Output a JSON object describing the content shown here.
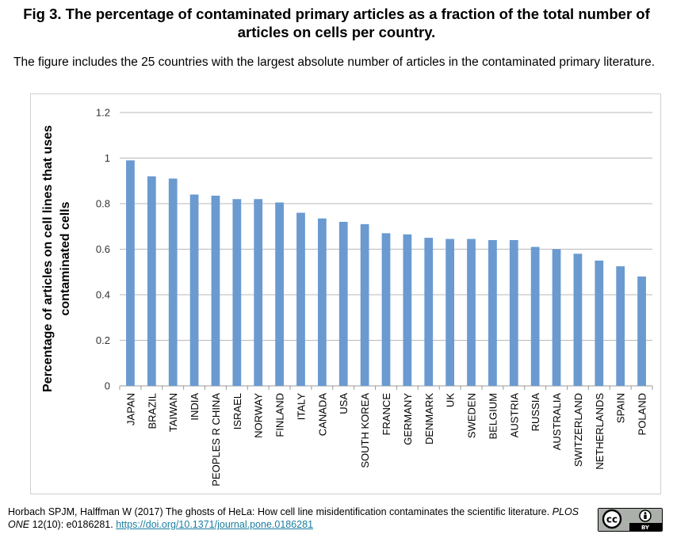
{
  "figure": {
    "title": "Fig 3. The percentage of contaminated primary articles as a fraction of the total number of articles on cells per country.",
    "caption": "The figure includes the 25 countries with the largest absolute number of articles in the contaminated primary literature."
  },
  "attribution": {
    "text_before": "Horbach SPJM, Halffman W (2017) The ghosts of HeLa: How cell line misidentification contaminates the scientific literature. ",
    "journal": "PLOS ONE",
    "text_after": " 12(10): e0186281. ",
    "doi_link": "https://doi.org/10.1371/journal.pone.0186281"
  },
  "license": {
    "cc_label": "cc",
    "by_label": "BY"
  },
  "chart_data": {
    "type": "bar",
    "title": "",
    "xlabel": "",
    "ylabel": "Percentage of articles on cell lines that uses contaminated cells",
    "ylabel_lines": [
      "Percentage of articles on cell lines that uses",
      "contaminated cells"
    ],
    "ylim": [
      0,
      1.2
    ],
    "yticks": [
      "0",
      "0.2",
      "0.4",
      "0.6",
      "0.8",
      "1",
      "1.2"
    ],
    "grid": true,
    "color": "#6a9ad0",
    "categories": [
      "JAPAN",
      "BRAZIL",
      "TAIWAN",
      "INDIA",
      "PEOPLES R CHINA",
      "ISRAEL",
      "NORWAY",
      "FINLAND",
      "ITALY",
      "CANADA",
      "USA",
      "SOUTH KOREA",
      "FRANCE",
      "GERMANY",
      "DENMARK",
      "UK",
      "SWEDEN",
      "BELGIUM",
      "AUSTRIA",
      "RUSSIA",
      "AUSTRALIA",
      "SWITZERLAND",
      "NETHERLANDS",
      "SPAIN",
      "POLAND"
    ],
    "values": [
      0.99,
      0.92,
      0.91,
      0.84,
      0.835,
      0.82,
      0.82,
      0.805,
      0.76,
      0.735,
      0.72,
      0.71,
      0.67,
      0.665,
      0.65,
      0.645,
      0.645,
      0.64,
      0.64,
      0.61,
      0.6,
      0.58,
      0.55,
      0.525,
      0.48
    ]
  }
}
